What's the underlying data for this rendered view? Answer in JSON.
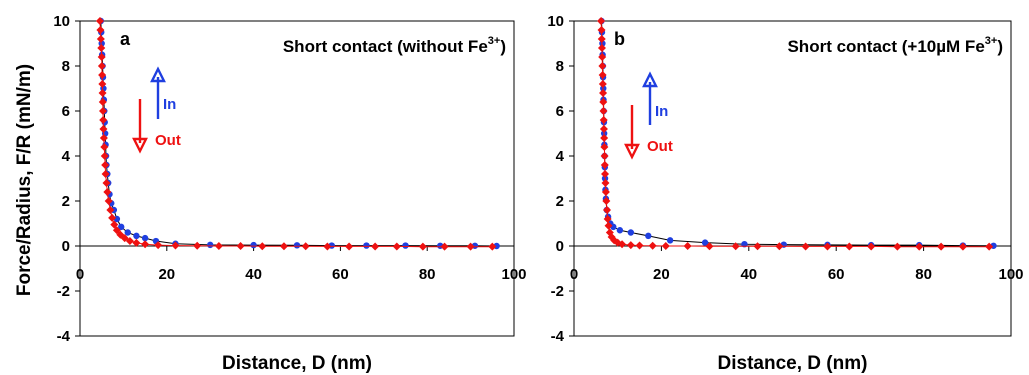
{
  "ylabel": "Force/Radius, F/R (mN/m)",
  "colors": {
    "in": "#1f3fe0",
    "out": "#ee1111",
    "axis": "#000000"
  },
  "chart_data": [
    {
      "type": "scatter",
      "panel_label": "a",
      "title_main": "Short contact (without Fe",
      "title_sup": "3+",
      "title_end": ")",
      "xlabel": "Distance, D (nm)",
      "xlim": [
        0,
        100
      ],
      "ylim": [
        -4,
        10
      ],
      "x_ticks": [
        "0",
        "20",
        "40",
        "60",
        "80",
        "100"
      ],
      "y_ticks": [
        "-4",
        "-2",
        "0",
        "2",
        "4",
        "6",
        "8",
        "10"
      ],
      "arrows": {
        "in_label": "In",
        "out_label": "Out"
      },
      "series": [
        {
          "name": "In",
          "points": [
            [
              4.8,
              10
            ],
            [
              4.9,
              9.5
            ],
            [
              5,
              9
            ],
            [
              5.1,
              8.5
            ],
            [
              5.2,
              8
            ],
            [
              5.3,
              7.5
            ],
            [
              5.4,
              7
            ],
            [
              5.5,
              6.5
            ],
            [
              5.6,
              6
            ],
            [
              5.7,
              5.5
            ],
            [
              5.8,
              5
            ],
            [
              5.9,
              4.5
            ],
            [
              6.0,
              4.0
            ],
            [
              6.1,
              3.6
            ],
            [
              6.3,
              3.2
            ],
            [
              6.5,
              2.8
            ],
            [
              6.8,
              2.3
            ],
            [
              7.2,
              1.9
            ],
            [
              7.8,
              1.6
            ],
            [
              8.5,
              1.2
            ],
            [
              9.5,
              0.85
            ],
            [
              11,
              0.6
            ],
            [
              13,
              0.45
            ],
            [
              15,
              0.35
            ],
            [
              17.5,
              0.22
            ],
            [
              22,
              0.1
            ],
            [
              30,
              0.05
            ],
            [
              40,
              0.04
            ],
            [
              50,
              0.03
            ],
            [
              58,
              0.02
            ],
            [
              66,
              0.02
            ],
            [
              75,
              0.02
            ],
            [
              83,
              0.01
            ],
            [
              91,
              0.01
            ],
            [
              96,
              0.0
            ]
          ]
        },
        {
          "name": "Out",
          "points": [
            [
              4.6,
              10
            ],
            [
              4.7,
              9.6
            ],
            [
              4.8,
              9.2
            ],
            [
              4.9,
              8.8
            ],
            [
              5,
              8.4
            ],
            [
              5.05,
              8
            ],
            [
              5.1,
              7.6
            ],
            [
              5.15,
              7.2
            ],
            [
              5.2,
              6.8
            ],
            [
              5.25,
              6.4
            ],
            [
              5.3,
              6
            ],
            [
              5.35,
              5.6
            ],
            [
              5.4,
              5.2
            ],
            [
              5.5,
              4.8
            ],
            [
              5.6,
              4.4
            ],
            [
              5.7,
              4
            ],
            [
              5.8,
              3.6
            ],
            [
              5.9,
              3.2
            ],
            [
              6.1,
              2.8
            ],
            [
              6.3,
              2.4
            ],
            [
              6.6,
              2
            ],
            [
              7,
              1.6
            ],
            [
              7.4,
              1.25
            ],
            [
              7.9,
              0.95
            ],
            [
              8.5,
              0.7
            ],
            [
              9.3,
              0.5
            ],
            [
              10.3,
              0.35
            ],
            [
              11.5,
              0.22
            ],
            [
              13,
              0.14
            ],
            [
              15,
              0.08
            ],
            [
              18,
              0.04
            ],
            [
              22,
              0.02
            ],
            [
              27,
              0.01
            ],
            [
              32,
              0
            ],
            [
              37,
              0
            ],
            [
              42,
              -0.01
            ],
            [
              47,
              -0.01
            ],
            [
              52,
              -0.01
            ],
            [
              57,
              -0.02
            ],
            [
              62,
              -0.02
            ],
            [
              68,
              -0.02
            ],
            [
              73,
              -0.02
            ],
            [
              79,
              -0.03
            ],
            [
              84,
              -0.03
            ],
            [
              90,
              -0.03
            ],
            [
              95,
              -0.03
            ]
          ]
        }
      ]
    },
    {
      "type": "scatter",
      "panel_label": "b",
      "title_main": "Short contact (+10µM Fe",
      "title_sup": "3+",
      "title_end": ")",
      "xlabel": "Distance, D (nm)",
      "xlim": [
        0,
        100
      ],
      "ylim": [
        -4,
        10
      ],
      "x_ticks": [
        "0",
        "20",
        "40",
        "60",
        "80",
        "100"
      ],
      "y_ticks": [
        "-4",
        "-2",
        "0",
        "2",
        "4",
        "6",
        "8",
        "10"
      ],
      "arrows": {
        "in_label": "In",
        "out_label": "Out"
      },
      "series": [
        {
          "name": "In",
          "points": [
            [
              6.3,
              10
            ],
            [
              6.4,
              9.5
            ],
            [
              6.5,
              9
            ],
            [
              6.55,
              8.5
            ],
            [
              6.6,
              8
            ],
            [
              6.65,
              7.5
            ],
            [
              6.7,
              7
            ],
            [
              6.75,
              6.5
            ],
            [
              6.8,
              6
            ],
            [
              6.85,
              5.5
            ],
            [
              6.9,
              5
            ],
            [
              6.95,
              4.5
            ],
            [
              7.0,
              4.0
            ],
            [
              7.05,
              3.5
            ],
            [
              7.1,
              3.0
            ],
            [
              7.2,
              2.5
            ],
            [
              7.3,
              2.1
            ],
            [
              7.5,
              1.6
            ],
            [
              7.8,
              1.3
            ],
            [
              8.3,
              1.0
            ],
            [
              9,
              0.85
            ],
            [
              10.5,
              0.7
            ],
            [
              13,
              0.6
            ],
            [
              17,
              0.45
            ],
            [
              22,
              0.25
            ],
            [
              30,
              0.15
            ],
            [
              39,
              0.08
            ],
            [
              48,
              0.06
            ],
            [
              58,
              0.05
            ],
            [
              68,
              0.04
            ],
            [
              79,
              0.04
            ],
            [
              89,
              0.02
            ],
            [
              96,
              0.01
            ]
          ]
        },
        {
          "name": "Out",
          "points": [
            [
              6.2,
              10
            ],
            [
              6.3,
              9.6
            ],
            [
              6.35,
              9.2
            ],
            [
              6.4,
              8.8
            ],
            [
              6.45,
              8.4
            ],
            [
              6.5,
              8
            ],
            [
              6.55,
              7.6
            ],
            [
              6.6,
              7.2
            ],
            [
              6.65,
              6.8
            ],
            [
              6.7,
              6.4
            ],
            [
              6.75,
              6
            ],
            [
              6.8,
              5.6
            ],
            [
              6.85,
              5.2
            ],
            [
              6.9,
              4.8
            ],
            [
              6.95,
              4.4
            ],
            [
              7.0,
              4.0
            ],
            [
              7.05,
              3.6
            ],
            [
              7.1,
              3.2
            ],
            [
              7.2,
              2.8
            ],
            [
              7.3,
              2.4
            ],
            [
              7.4,
              2.0
            ],
            [
              7.55,
              1.6
            ],
            [
              7.7,
              1.2
            ],
            [
              7.9,
              0.9
            ],
            [
              8.2,
              0.6
            ],
            [
              8.6,
              0.4
            ],
            [
              9.2,
              0.25
            ],
            [
              10,
              0.15
            ],
            [
              11,
              0.08
            ],
            [
              13,
              0.04
            ],
            [
              15,
              0.02
            ],
            [
              18,
              0.01
            ],
            [
              21,
              0
            ],
            [
              26,
              0
            ],
            [
              31,
              -0.01
            ],
            [
              37,
              -0.01
            ],
            [
              42,
              -0.01
            ],
            [
              47,
              -0.01
            ],
            [
              53,
              -0.02
            ],
            [
              58,
              -0.02
            ],
            [
              63,
              -0.02
            ],
            [
              68,
              -0.02
            ],
            [
              74,
              -0.03
            ],
            [
              79,
              -0.03
            ],
            [
              84,
              -0.03
            ],
            [
              89,
              -0.03
            ],
            [
              95,
              -0.03
            ]
          ]
        }
      ]
    }
  ]
}
